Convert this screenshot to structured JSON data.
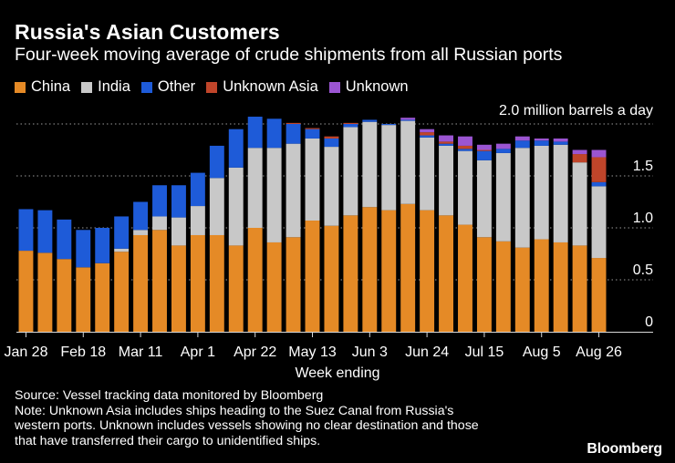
{
  "header": {
    "title": "Russia's Asian Customers",
    "subtitle": "Four-week moving average of crude shipments from all Russian ports"
  },
  "chart_data": {
    "type": "bar",
    "stacked": true,
    "unit_label": "2.0 million barrels a day",
    "xlabel": "Week ending",
    "ylabel": "",
    "ylim": [
      0,
      2.0
    ],
    "yticks": [
      "0",
      "0.5",
      "1.0",
      "1.5",
      "2.0"
    ],
    "grid": true,
    "legend_position": "top-left",
    "x_tick_labels": [
      "Jan 28",
      "Feb 18",
      "Mar 11",
      "Apr 1",
      "Apr 22",
      "May 13",
      "Jun 3",
      "Jun 24",
      "Jul 15",
      "Aug 5",
      "Aug 26"
    ],
    "x_tick_every": 3,
    "num_bars": 31,
    "series": [
      {
        "name": "China",
        "color": "#E58A26",
        "values": [
          0.78,
          0.76,
          0.7,
          0.62,
          0.66,
          0.77,
          0.93,
          0.98,
          0.83,
          0.93,
          0.93,
          0.83,
          1.0,
          0.86,
          0.91,
          1.07,
          1.02,
          1.12,
          1.2,
          1.17,
          1.23,
          1.17,
          1.12,
          1.03,
          0.91,
          0.87,
          0.81,
          0.89,
          0.86,
          0.83,
          0.71
        ]
      },
      {
        "name": "India",
        "color": "#C8C8C8",
        "values": [
          0.0,
          0.0,
          0.0,
          0.0,
          0.0,
          0.03,
          0.05,
          0.13,
          0.27,
          0.28,
          0.55,
          0.75,
          0.77,
          0.91,
          0.9,
          0.79,
          0.76,
          0.85,
          0.82,
          0.82,
          0.8,
          0.7,
          0.67,
          0.71,
          0.74,
          0.85,
          0.96,
          0.9,
          0.94,
          0.8,
          0.69
        ]
      },
      {
        "name": "Other",
        "color": "#1E5BD8",
        "values": [
          0.4,
          0.41,
          0.38,
          0.36,
          0.34,
          0.31,
          0.27,
          0.3,
          0.31,
          0.32,
          0.31,
          0.37,
          0.3,
          0.28,
          0.19,
          0.09,
          0.08,
          0.03,
          0.02,
          0.01,
          0.01,
          0.02,
          0.02,
          0.02,
          0.09,
          0.04,
          0.07,
          0.05,
          0.03,
          0.0,
          0.04
        ]
      },
      {
        "name": "Unknown Asia",
        "color": "#C0452A",
        "values": [
          0,
          0,
          0,
          0,
          0,
          0,
          0,
          0,
          0,
          0,
          0,
          0,
          0,
          0,
          0.01,
          0.01,
          0.02,
          0.01,
          0,
          0,
          0,
          0.03,
          0.02,
          0.03,
          0.01,
          0,
          0,
          0,
          0,
          0.08,
          0.24
        ]
      },
      {
        "name": "Unknown",
        "color": "#9B55D2",
        "values": [
          0,
          0,
          0,
          0,
          0,
          0,
          0,
          0,
          0,
          0,
          0,
          0,
          0,
          0,
          0,
          0,
          0,
          0,
          0,
          0,
          0.02,
          0.03,
          0.06,
          0.09,
          0.05,
          0.05,
          0.04,
          0.02,
          0.03,
          0.04,
          0.07
        ]
      }
    ]
  },
  "footer": {
    "lines": [
      "Source: Vessel tracking data monitored by Bloomberg",
      "Note: Unknown Asia includes ships heading to the Suez Canal from Russia's",
      "western ports. Unknown includes vessels showing no clear destination and those",
      "that have transferred their cargo to unidentified ships."
    ],
    "brand": "Bloomberg"
  }
}
